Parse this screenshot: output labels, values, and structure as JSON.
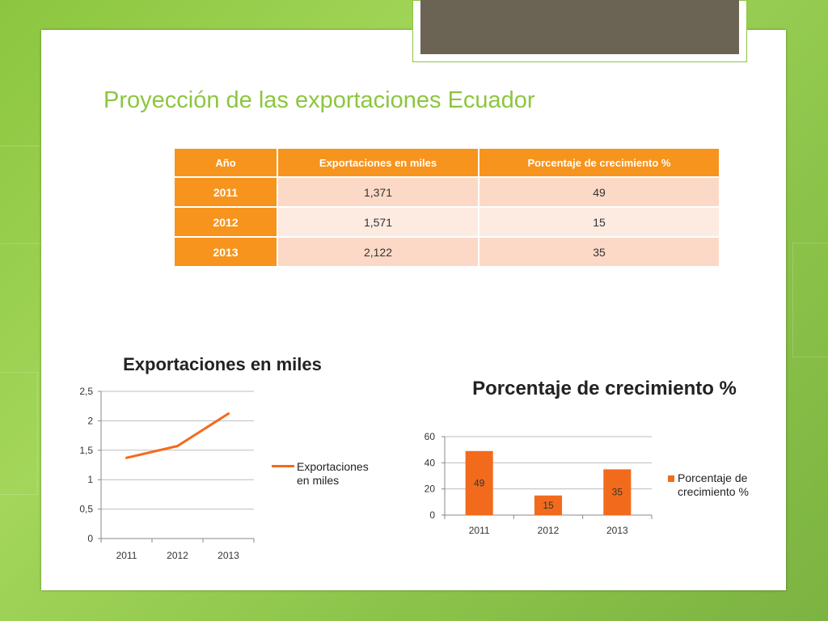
{
  "slide": {
    "title": "Proyección de las exportaciones Ecuador",
    "accent_color": "#8cc63f",
    "tab_color": "#6b6455"
  },
  "table": {
    "headers": [
      "Año",
      "Exportaciones en miles",
      "Porcentaje de crecimiento %"
    ],
    "rows": [
      [
        "2011",
        "1,371",
        "49"
      ],
      [
        "2012",
        "1,571",
        "15"
      ],
      [
        "2013",
        "2,122",
        "35"
      ]
    ],
    "header_color": "#f7941d"
  },
  "chart_data": [
    {
      "type": "line",
      "title": "Exportaciones en miles",
      "categories": [
        "2011",
        "2012",
        "2013"
      ],
      "series": [
        {
          "name": "Exportaciones en miles",
          "values": [
            1.371,
            1.571,
            2.122
          ],
          "color": "#f26b1d"
        }
      ],
      "ylim": [
        0,
        2.5
      ],
      "yticks": [
        "0",
        "0,5",
        "1",
        "1,5",
        "2",
        "2,5"
      ],
      "grid": true,
      "legend": "right"
    },
    {
      "type": "bar",
      "title": "Porcentaje de crecimiento %",
      "categories": [
        "2011",
        "2012",
        "2013"
      ],
      "series": [
        {
          "name": "Porcentaje de crecimiento %",
          "values": [
            49,
            15,
            35
          ],
          "color": "#f26b1d"
        }
      ],
      "ylim": [
        0,
        60
      ],
      "yticks": [
        "0",
        "20",
        "40",
        "60"
      ],
      "data_labels": true,
      "grid": true,
      "legend": "right"
    }
  ]
}
